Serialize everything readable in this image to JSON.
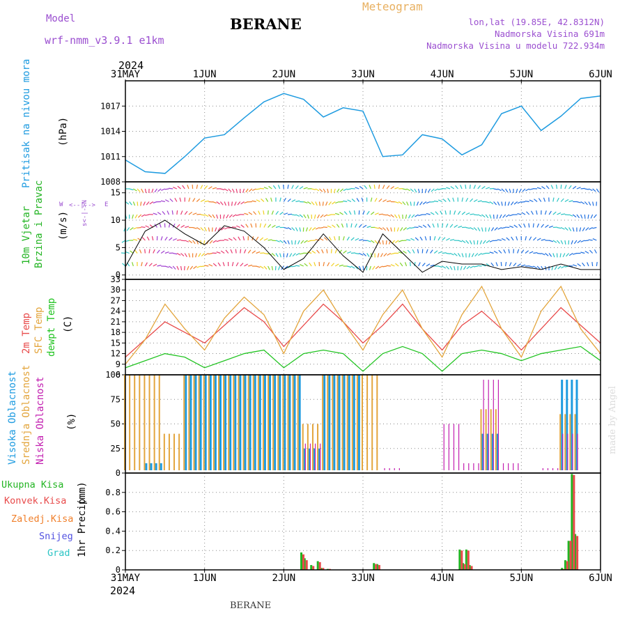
{
  "header": {
    "model_label": "Model",
    "model_value": "wrf-nmm_v3.9.1 e1km",
    "title": "BERANE",
    "meteogram": "Meteogram",
    "coords": "lon,lat (19.85E, 42.8312N)",
    "altitude": "Nadmorska Visina 691m",
    "model_altitude": "Nadmorska Visina u modelu 722.934m"
  },
  "time_axis": {
    "year": "2024",
    "labels": [
      "31MAY",
      "1JUN",
      "2JUN",
      "3JUN",
      "4JUN",
      "5JUN",
      "6JUN"
    ]
  },
  "footer": {
    "station": "BERANE"
  },
  "watermark": "made by Angel",
  "colors": {
    "pressure": "#1e9be0",
    "wind_label": "#22b422",
    "temp2m": "#e84a4a",
    "sfc_temp": "#e3a53c",
    "dewpt": "#22c422",
    "cloud_high": "#1e9be0",
    "cloud_mid": "#e3a53c",
    "cloud_low": "#c21fb0"
  },
  "chart_data": [
    {
      "type": "line",
      "id": "pressure",
      "ylabel_main": "Pritisak na nivou mora",
      "unit": "(hPa)",
      "ylim": [
        1008,
        1020
      ],
      "yticks": [
        1008,
        1011,
        1014,
        1017
      ],
      "grid": true,
      "x_hours": [
        0,
        6,
        12,
        18,
        24,
        30,
        36,
        42,
        48,
        54,
        60,
        66,
        72,
        78,
        84,
        90,
        96,
        102,
        108,
        114,
        120,
        126,
        132,
        138,
        144
      ],
      "values": [
        1010.6,
        1009.2,
        1009.0,
        1011.0,
        1013.2,
        1013.6,
        1015.6,
        1017.5,
        1018.5,
        1017.8,
        1015.7,
        1016.8,
        1016.4,
        1011.0,
        1011.2,
        1013.6,
        1013.1,
        1011.2,
        1012.4,
        1016.1,
        1017.0,
        1014.1,
        1015.8,
        1017.9,
        1018.2
      ]
    },
    {
      "type": "line",
      "id": "wind",
      "ylabel_main": "10m Vjetar",
      "ylabel_sub": "Brzina i Pravac",
      "unit": "(m/s)",
      "ylim": [
        -0.8,
        17
      ],
      "yticks": [
        0,
        5,
        10,
        15
      ],
      "grid": true,
      "compass": {
        "w": "W",
        "e": "E",
        "n": "N",
        "s": "S",
        "ns_glyph": "s<-|->N",
        "we_glyph": "<--|-->"
      },
      "x_hours": [
        0,
        6,
        12,
        18,
        24,
        30,
        36,
        42,
        48,
        54,
        60,
        66,
        72,
        78,
        84,
        90,
        96,
        102,
        108,
        114,
        120,
        126,
        132,
        138,
        144
      ],
      "values": [
        1.5,
        8.0,
        10.0,
        7.5,
        5.5,
        9.0,
        8.0,
        5.0,
        1.0,
        3.0,
        7.5,
        3.5,
        0.5,
        7.5,
        4.0,
        0.5,
        2.5,
        2.0,
        2.0,
        1.0,
        1.5,
        1.0,
        2.0,
        1.0,
        1.0
      ]
    },
    {
      "type": "line",
      "id": "temperature",
      "ylabel_lines": [
        "2m Temp",
        "SFC Temp",
        "dewpt Temp"
      ],
      "unit": "(C)",
      "ylim": [
        6,
        33
      ],
      "yticks": [
        6,
        9,
        12,
        15,
        18,
        21,
        24,
        27,
        30,
        33
      ],
      "grid": true,
      "x_hours": [
        0,
        6,
        12,
        18,
        24,
        30,
        36,
        42,
        48,
        54,
        60,
        66,
        72,
        78,
        84,
        90,
        96,
        102,
        108,
        114,
        120,
        126,
        132,
        138,
        144
      ],
      "series": [
        {
          "name": "2m Temp",
          "values": [
            11,
            16,
            21,
            18,
            15,
            20,
            25,
            21,
            14,
            20,
            26,
            21,
            15,
            20,
            26,
            19,
            13,
            20,
            24,
            19,
            13,
            19,
            25,
            20,
            15
          ]
        },
        {
          "name": "SFC Temp",
          "values": [
            9,
            16,
            26,
            19,
            13,
            22,
            28,
            23,
            12,
            24,
            30,
            21,
            13,
            23,
            30,
            19,
            11,
            23,
            31,
            19,
            11,
            24,
            31,
            19,
            12
          ]
        },
        {
          "name": "dewpt Temp",
          "values": [
            8,
            10,
            12,
            11,
            8,
            10,
            12,
            13,
            8,
            12,
            13,
            12,
            7,
            12,
            14,
            12,
            7,
            12,
            13,
            12,
            10,
            12,
            13,
            14,
            10
          ]
        }
      ]
    },
    {
      "type": "bar",
      "id": "cloud",
      "ylabel_lines": [
        "Visoka Oblacnost",
        "Srednja Oblacnost",
        "Niska Oblacnost"
      ],
      "unit": "(%)",
      "ylim": [
        0,
        100
      ],
      "yticks": [
        0,
        25,
        50,
        75,
        100
      ],
      "grid": true,
      "x_hours": [
        0,
        6,
        12,
        18,
        24,
        30,
        36,
        42,
        48,
        54,
        60,
        66,
        72,
        78,
        84,
        90,
        96,
        102,
        108,
        114,
        120,
        126,
        132,
        138,
        144
      ],
      "series": [
        {
          "name": "Visoka Oblacnost",
          "values": [
            0,
            10,
            0,
            100,
            100,
            100,
            100,
            100,
            100,
            25,
            100,
            100,
            0,
            0,
            0,
            0,
            0,
            0,
            40,
            0,
            0,
            0,
            95,
            0,
            0
          ]
        },
        {
          "name": "Srednja Oblacnost",
          "values": [
            100,
            100,
            40,
            100,
            100,
            100,
            100,
            100,
            100,
            50,
            100,
            100,
            100,
            0,
            0,
            0,
            0,
            0,
            65,
            0,
            0,
            0,
            60,
            0,
            0
          ]
        },
        {
          "name": "Niska Oblacnost",
          "values": [
            0,
            0,
            0,
            0,
            0,
            0,
            0,
            0,
            0,
            30,
            0,
            0,
            0,
            5,
            0,
            0,
            50,
            10,
            95,
            10,
            0,
            5,
            40,
            0,
            0
          ]
        }
      ]
    },
    {
      "type": "bar",
      "id": "precip",
      "legend_labels": [
        "Ukupna Kisa",
        "Konvek.Kisa",
        "Zaledj.Kisa",
        "Snijeg",
        "Grad"
      ],
      "legend_colors": [
        "#22b422",
        "#e84a4a",
        "#f07f2a",
        "#5050e0",
        "#2ac4c4"
      ],
      "ylabel_main": "1hr Precip",
      "unit": "(mm)",
      "ylim": [
        0,
        1.0
      ],
      "yticks": [
        0,
        0.2,
        0.4,
        0.6,
        0.8
      ],
      "grid": true,
      "x_hours": [
        53,
        54,
        56,
        58,
        59,
        61,
        75,
        76,
        101,
        102,
        103,
        104,
        132,
        133,
        134,
        135,
        136
      ],
      "series": [
        {
          "name": "Ukupna Kisa",
          "values": [
            0.18,
            0.12,
            0.05,
            0.09,
            0.02,
            0.01,
            0.07,
            0.06,
            0.21,
            0.07,
            0.21,
            0.05,
            0.02,
            0.1,
            0.3,
            0.99,
            0.37
          ]
        },
        {
          "name": "Konvek.Kisa",
          "values": [
            0.16,
            0.1,
            0.04,
            0.08,
            0.02,
            0.01,
            0.06,
            0.05,
            0.2,
            0.06,
            0.2,
            0.04,
            0.01,
            0.09,
            0.3,
            0.98,
            0.35
          ]
        }
      ]
    }
  ]
}
